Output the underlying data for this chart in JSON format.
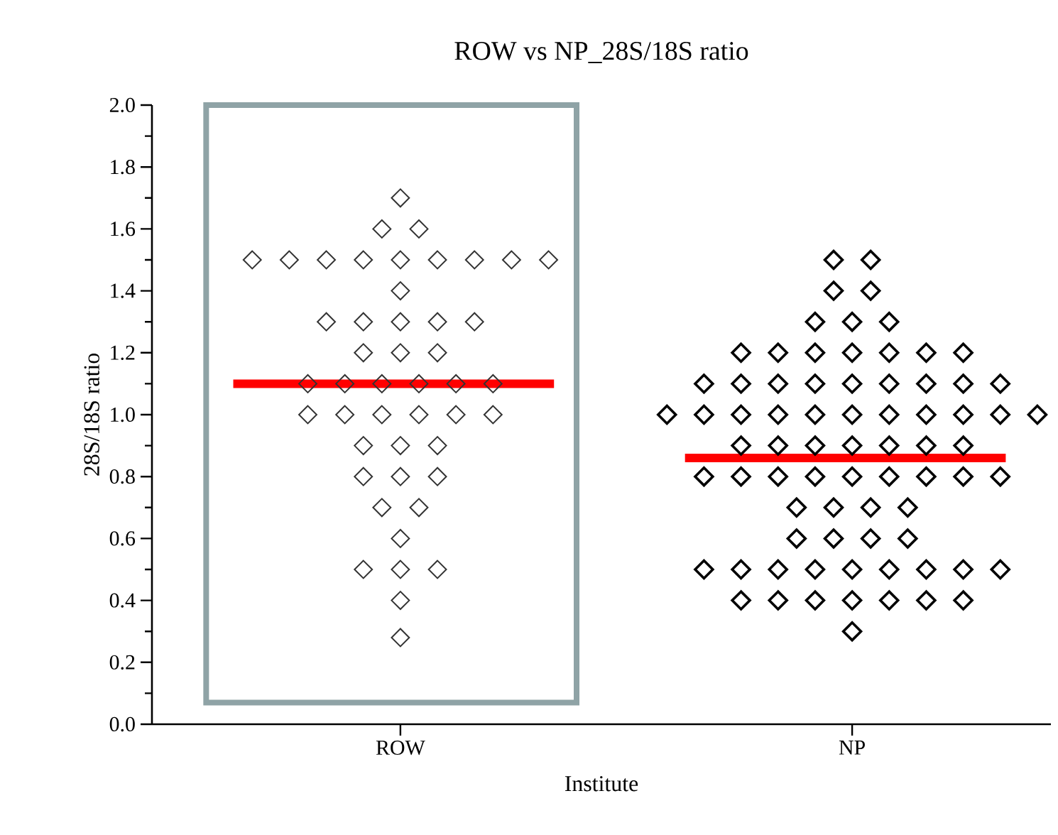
{
  "chart_data": {
    "type": "scatter",
    "title": "ROW vs NP_28S/18S ratio",
    "xlabel": "Institute",
    "ylabel": "28S/18S ratio",
    "categories": [
      "ROW",
      "NP"
    ],
    "series": [
      {
        "color": "#333333",
        "x": [
          "ROW",
          "ROW",
          "ROW",
          "ROW",
          "ROW",
          "ROW",
          "ROW",
          "ROW",
          "ROW",
          "ROW",
          "ROW",
          "ROW",
          "ROW",
          "ROW",
          "ROW",
          "ROW",
          "ROW",
          "ROW",
          "ROW",
          "ROW",
          "ROW",
          "ROW",
          "ROW",
          "ROW",
          "ROW",
          "ROW",
          "ROW",
          "ROW",
          "ROW",
          "ROW",
          "ROW",
          "ROW",
          "ROW",
          "ROW",
          "ROW",
          "ROW",
          "ROW",
          "ROW",
          "ROW",
          "ROW",
          "ROW",
          "ROW",
          "ROW",
          "ROW",
          "ROW",
          "ROW",
          "ROW"
        ],
        "values": [
          1.7,
          1.6,
          1.6,
          1.5,
          1.5,
          1.5,
          1.5,
          1.5,
          1.5,
          1.5,
          1.5,
          1.5,
          1.4,
          1.3,
          1.3,
          1.3,
          1.3,
          1.3,
          1.2,
          1.2,
          1.2,
          1.1,
          1.1,
          1.1,
          1.1,
          1.1,
          1.1,
          1.0,
          1.0,
          1.0,
          1.0,
          1.0,
          1.0,
          0.9,
          0.9,
          0.9,
          0.8,
          0.8,
          0.8,
          0.7,
          0.7,
          0.6,
          0.5,
          0.5,
          0.5,
          0.4,
          0.28
        ]
      },
      {
        "color": "#000000",
        "x": [
          "NP",
          "NP",
          "NP",
          "NP",
          "NP",
          "NP",
          "NP",
          "NP",
          "NP",
          "NP",
          "NP",
          "NP",
          "NP",
          "NP",
          "NP",
          "NP",
          "NP",
          "NP",
          "NP",
          "NP",
          "NP",
          "NP",
          "NP",
          "NP",
          "NP",
          "NP",
          "NP",
          "NP",
          "NP",
          "NP",
          "NP",
          "NP",
          "NP",
          "NP",
          "NP",
          "NP",
          "NP",
          "NP",
          "NP",
          "NP",
          "NP",
          "NP",
          "NP",
          "NP",
          "NP",
          "NP",
          "NP",
          "NP",
          "NP",
          "NP",
          "NP",
          "NP",
          "NP",
          "NP",
          "NP",
          "NP",
          "NP",
          "NP",
          "NP",
          "NP",
          "NP",
          "NP",
          "NP",
          "NP",
          "NP",
          "NP",
          "NP",
          "NP",
          "NP",
          "NP",
          "NP",
          "NP",
          "NP",
          "NP",
          "NP"
        ],
        "values": [
          1.5,
          1.5,
          1.4,
          1.4,
          1.3,
          1.3,
          1.3,
          1.2,
          1.2,
          1.2,
          1.2,
          1.2,
          1.2,
          1.2,
          1.1,
          1.1,
          1.1,
          1.1,
          1.1,
          1.1,
          1.1,
          1.1,
          1.1,
          1.0,
          1.0,
          1.0,
          1.0,
          1.0,
          1.0,
          1.0,
          1.0,
          1.0,
          1.0,
          1.0,
          0.9,
          0.9,
          0.9,
          0.9,
          0.9,
          0.9,
          0.9,
          0.8,
          0.8,
          0.8,
          0.8,
          0.8,
          0.8,
          0.8,
          0.8,
          0.8,
          0.7,
          0.7,
          0.7,
          0.7,
          0.6,
          0.6,
          0.6,
          0.6,
          0.5,
          0.5,
          0.5,
          0.5,
          0.5,
          0.5,
          0.5,
          0.5,
          0.5,
          0.4,
          0.4,
          0.4,
          0.4,
          0.4,
          0.4,
          0.4,
          0.3
        ]
      }
    ],
    "ref_lines": [
      {
        "axis": "y",
        "value": 1.1,
        "color": "#ff0000"
      },
      {
        "axis": "y",
        "value": 0.86,
        "color": "#ff0000"
      }
    ],
    "ylim": [
      0,
      2
    ],
    "yticks": [
      {
        "value": 0,
        "label": "0.0"
      },
      0.2,
      0.4,
      0.6,
      0.8,
      {
        "value": 1,
        "label": "1.0"
      },
      1.2,
      1.4,
      1.6,
      1.8,
      {
        "value": 2,
        "label": "2.0"
      }
    ],
    "marker": "diamond",
    "grid": false
  }
}
